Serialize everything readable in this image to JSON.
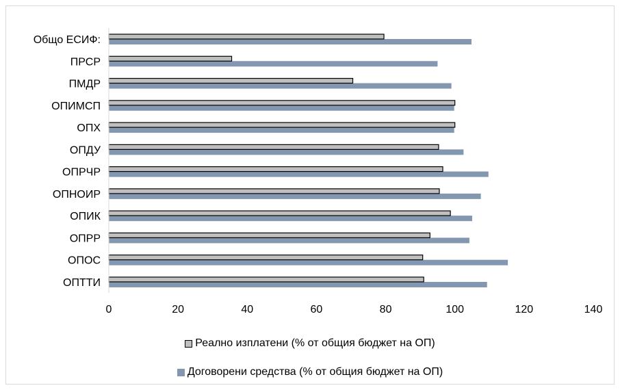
{
  "chart_data": {
    "type": "bar",
    "orientation": "horizontal",
    "categories": [
      "Общо ЕСИФ:",
      "ПРСР",
      "ПМДР",
      "ОПИМСП",
      "ОПХ",
      "ОПДУ",
      "ОПРЧР",
      "ОПНОИР",
      "ОПИК",
      "ОПРР",
      "ОПОС",
      "ОПТТИ"
    ],
    "series": [
      {
        "name": "Реално изплатени (% от общия бюджет на ОП)",
        "color": "#bfbfbf",
        "border": "#000000",
        "values": [
          79.5,
          35.5,
          70.5,
          100,
          100,
          95.3,
          96.5,
          95.5,
          98.7,
          92.8,
          90.7,
          91
        ]
      },
      {
        "name": "Договорени средства (% от общия бюджет на ОП)",
        "color": "#8497b0",
        "values": [
          104.8,
          95,
          99,
          99.8,
          99.8,
          102.5,
          109.7,
          107.5,
          105,
          104.2,
          115.3,
          109.3
        ]
      }
    ],
    "xlim": [
      0,
      140
    ],
    "xticks": [
      0,
      20,
      40,
      60,
      80,
      100,
      120,
      140
    ],
    "xtick_labels": [
      "0",
      "20",
      "40",
      "60",
      "80",
      "100",
      "120",
      "140"
    ],
    "title": "",
    "xlabel": "",
    "ylabel": "",
    "grid": false,
    "legend_position": "bottom"
  }
}
